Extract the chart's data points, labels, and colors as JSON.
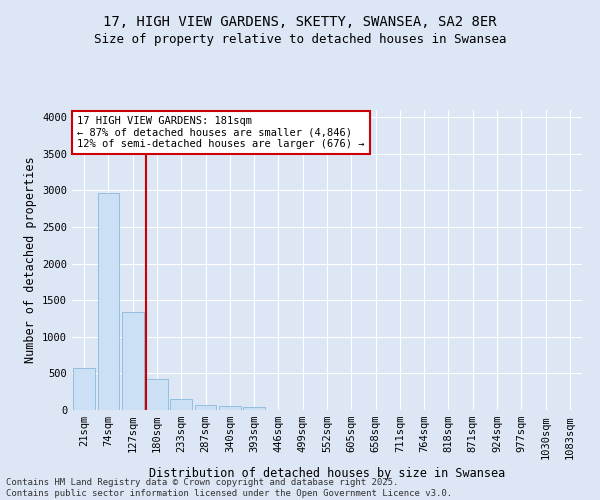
{
  "title_line1": "17, HIGH VIEW GARDENS, SKETTY, SWANSEA, SA2 8ER",
  "title_line2": "Size of property relative to detached houses in Swansea",
  "xlabel": "Distribution of detached houses by size in Swansea",
  "ylabel": "Number of detached properties",
  "footer_line1": "Contains HM Land Registry data © Crown copyright and database right 2025.",
  "footer_line2": "Contains public sector information licensed under the Open Government Licence v3.0.",
  "annotation_line1": "17 HIGH VIEW GARDENS: 181sqm",
  "annotation_line2": "← 87% of detached houses are smaller (4,846)",
  "annotation_line3": "12% of semi-detached houses are larger (676) →",
  "bar_color": "#cce0f5",
  "bar_edge_color": "#7ab0d4",
  "vline_color": "#cc0000",
  "background_color": "#dce6f5",
  "grid_color": "#ffffff",
  "categories": [
    "21sqm",
    "74sqm",
    "127sqm",
    "180sqm",
    "233sqm",
    "287sqm",
    "340sqm",
    "393sqm",
    "446sqm",
    "499sqm",
    "552sqm",
    "605sqm",
    "658sqm",
    "711sqm",
    "764sqm",
    "818sqm",
    "871sqm",
    "924sqm",
    "977sqm",
    "1030sqm",
    "1083sqm"
  ],
  "values": [
    580,
    2970,
    1340,
    430,
    155,
    75,
    55,
    40,
    0,
    0,
    0,
    0,
    0,
    0,
    0,
    0,
    0,
    0,
    0,
    0,
    0
  ],
  "ylim": [
    0,
    4100
  ],
  "yticks": [
    0,
    500,
    1000,
    1500,
    2000,
    2500,
    3000,
    3500,
    4000
  ],
  "vline_x_index": 2.55,
  "annotation_box_color": "#ffffff",
  "annotation_box_edge": "#cc0000",
  "title_fontsize": 10,
  "subtitle_fontsize": 9,
  "axis_label_fontsize": 8.5,
  "tick_fontsize": 7.5,
  "annotation_fontsize": 7.5,
  "footer_fontsize": 6.5
}
